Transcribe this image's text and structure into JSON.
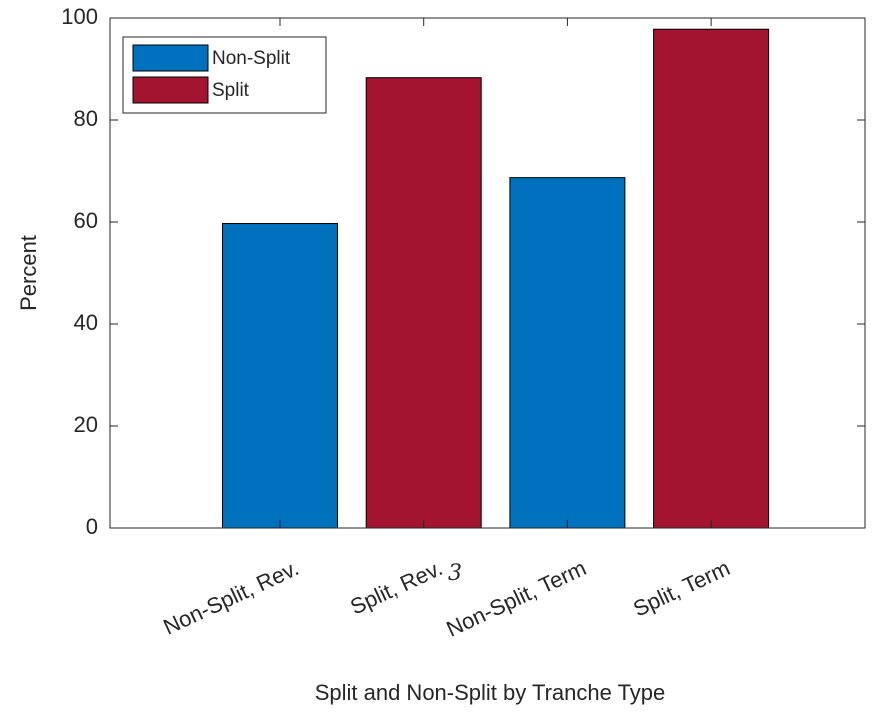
{
  "chart_data": {
    "type": "bar",
    "xlabel": "Split and Non-Split by Tranche Type",
    "ylabel": "Percent",
    "annotation": "3",
    "categories": [
      "Non-Split, Rev.",
      "Split, Rev.",
      "Non-Split, Term",
      "Split, Term"
    ],
    "series": [
      {
        "name": "Non-Split",
        "color": "#0072bd",
        "values": [
          59.7,
          null,
          68.7,
          null
        ]
      },
      {
        "name": "Split",
        "color": "#a2142f",
        "values": [
          null,
          88.3,
          null,
          97.8
        ]
      }
    ],
    "ylim": [
      0,
      100
    ],
    "yticks": [
      0,
      20,
      40,
      60,
      80,
      100
    ],
    "legend": "northwest"
  }
}
